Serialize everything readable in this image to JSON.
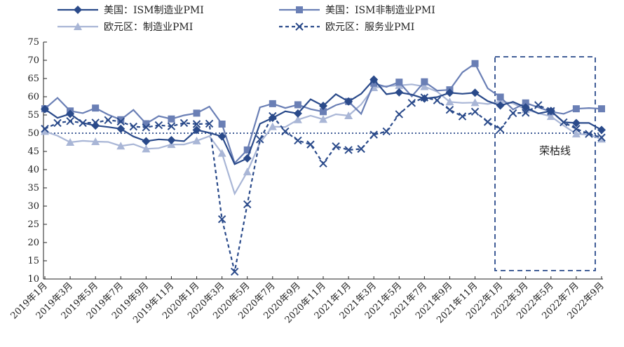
{
  "chart_data": {
    "type": "line",
    "x_labels": [
      "2019年1月",
      "2019年3月",
      "2019年5月",
      "2019年7月",
      "2019年9月",
      "2019年11月",
      "2020年1月",
      "2020年3月",
      "2020年5月",
      "2020年7月",
      "2020年9月",
      "2020年11月",
      "2021年1月",
      "2021年3月",
      "2021年5月",
      "2021年7月",
      "2021年9月",
      "2021年11月",
      "2022年1月",
      "2022年3月",
      "2022年5月",
      "2022年7月",
      "2022年9月"
    ],
    "ylim": [
      10,
      75
    ],
    "yticks": [
      10,
      15,
      20,
      25,
      30,
      35,
      40,
      45,
      50,
      55,
      60,
      65,
      70,
      75
    ],
    "reference_line": {
      "value": 50,
      "label": "荣枯线"
    },
    "series": [
      {
        "name": "美国：ISM制造业PMI",
        "color": "#2a4a8a",
        "marker": "diamond",
        "dashed": false,
        "values": [
          56.6,
          54.2,
          55.3,
          52.8,
          52.1,
          51.7,
          51.2,
          49.1,
          47.8,
          48.3,
          48.1,
          47.8,
          50.9,
          50.1,
          49.1,
          41.5,
          43.1,
          52.6,
          54.2,
          56.0,
          55.4,
          59.3,
          57.5,
          60.7,
          58.7,
          60.8,
          64.7,
          60.7,
          61.2,
          60.6,
          59.5,
          59.9,
          61.1,
          60.8,
          61.1,
          58.8,
          57.6,
          58.6,
          57.1,
          55.4,
          56.1,
          53.0,
          52.8,
          52.8,
          50.9
        ]
      },
      {
        "name": "美国：ISM非制造业PMI",
        "color": "#6a7fb5",
        "marker": "square",
        "dashed": false,
        "values": [
          56.7,
          59.7,
          56.1,
          55.5,
          56.9,
          55.1,
          53.7,
          56.4,
          52.6,
          54.7,
          53.9,
          54.9,
          55.5,
          57.3,
          52.5,
          41.8,
          45.4,
          57.1,
          58.1,
          56.9,
          57.8,
          56.6,
          55.9,
          57.7,
          58.7,
          55.3,
          63.7,
          62.7,
          64.0,
          60.1,
          64.1,
          61.7,
          61.9,
          66.7,
          69.1,
          62.3,
          59.9,
          56.5,
          58.3,
          57.1,
          55.9,
          55.3,
          56.7,
          56.9,
          56.7
        ]
      },
      {
        "name": "欧元区：制造业PMI",
        "color": "#a9b6d6",
        "marker": "triangle",
        "dashed": false,
        "values": [
          50.5,
          49.3,
          47.5,
          47.9,
          47.7,
          47.6,
          46.5,
          47.0,
          45.7,
          45.9,
          46.9,
          46.9,
          47.9,
          49.2,
          44.5,
          33.4,
          39.4,
          47.4,
          51.8,
          51.7,
          53.7,
          54.8,
          53.8,
          55.2,
          54.8,
          57.9,
          62.5,
          62.9,
          63.1,
          63.4,
          62.8,
          61.4,
          58.6,
          58.3,
          58.4,
          58.0,
          58.7,
          58.2,
          56.5,
          55.5,
          54.6,
          52.1,
          49.8,
          49.6,
          48.4
        ]
      },
      {
        "name": "欧元区：服务业PMI",
        "color": "#2a4a8a",
        "marker": "x",
        "dashed": true,
        "values": [
          51.2,
          52.8,
          53.3,
          52.8,
          52.9,
          53.6,
          53.2,
          51.8,
          51.6,
          52.2,
          51.9,
          52.8,
          52.5,
          52.6,
          26.4,
          12.0,
          30.5,
          48.3,
          54.7,
          50.5,
          48.0,
          46.9,
          41.7,
          46.4,
          45.4,
          45.7,
          49.6,
          50.5,
          55.2,
          58.3,
          59.8,
          59.0,
          56.4,
          54.6,
          55.9,
          53.1,
          51.1,
          55.5,
          55.6,
          57.7,
          56.1,
          53.0,
          51.2,
          49.8,
          48.8
        ]
      }
    ],
    "legend_position": "top",
    "annotation_box": "dashed rectangle highlighting 2022",
    "grid": false
  }
}
